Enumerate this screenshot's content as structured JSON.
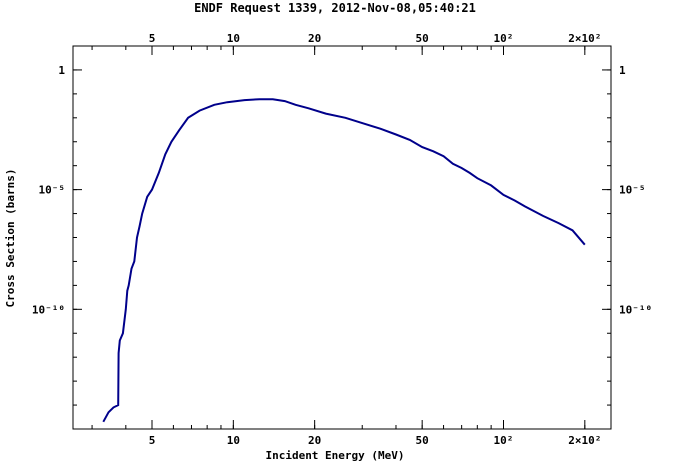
{
  "chart_data": {
    "type": "line",
    "title": "ENDF Request 1339, 2012-Nov-08,05:40:21",
    "xlabel": "Incident Energy (MeV)",
    "ylabel": "Cross Section (barns)",
    "x_scale": "log",
    "y_scale": "log",
    "xlim": [
      2.55,
      250
    ],
    "ylim": [
      1e-15,
      10
    ],
    "x_ticks": [
      {
        "value": 5,
        "label": "5"
      },
      {
        "value": 10,
        "label": "10"
      },
      {
        "value": 20,
        "label": "20"
      },
      {
        "value": 50,
        "label": "50"
      },
      {
        "value": 100,
        "label": "10²"
      },
      {
        "value": 200,
        "label": "2×10²"
      }
    ],
    "y_ticks": [
      {
        "value": 1,
        "label": "1"
      },
      {
        "value": 1e-05,
        "label": "10⁻⁵"
      },
      {
        "value": 1e-10,
        "label": "10⁻¹⁰"
      }
    ],
    "grid": false,
    "legend": "none",
    "line_color": "#00008b",
    "series": [
      {
        "x": [
          3.3,
          3.45,
          3.6,
          3.75,
          3.76,
          3.8,
          3.9,
          4.0,
          4.05,
          4.1,
          4.2,
          4.3,
          4.4,
          4.5,
          4.6,
          4.8,
          5.0,
          5.3,
          5.6,
          5.9,
          6.3,
          6.8,
          7.5,
          8.5,
          9.5,
          11.0,
          12.5,
          14.0,
          15.5,
          17.0,
          19.0,
          22.0,
          26.0,
          30.0,
          35.0,
          40.0,
          45.0,
          50.0,
          55.0,
          60.0,
          65.0,
          70.0,
          75.0,
          80.0,
          90.0,
          100.0,
          110.0,
          120.0,
          140.0,
          160.0,
          180.0,
          200.0
        ],
        "y": [
          2e-15,
          5e-15,
          8e-15,
          1e-14,
          1.5e-12,
          5e-12,
          1e-11,
          1e-10,
          6e-10,
          1e-09,
          5e-09,
          1e-08,
          1e-07,
          3e-07,
          1e-06,
          5e-06,
          1e-05,
          5e-05,
          0.0003,
          0.001,
          0.003,
          0.01,
          0.02,
          0.035,
          0.045,
          0.055,
          0.06,
          0.06,
          0.05,
          0.035,
          0.025,
          0.015,
          0.01,
          0.006,
          0.0035,
          0.002,
          0.0012,
          0.0006,
          0.0004,
          0.00025,
          0.00012,
          8e-05,
          5e-05,
          3e-05,
          1.5e-05,
          6e-06,
          3.5e-06,
          2e-06,
          8e-07,
          4e-07,
          2e-07,
          5e-08
        ]
      }
    ]
  }
}
